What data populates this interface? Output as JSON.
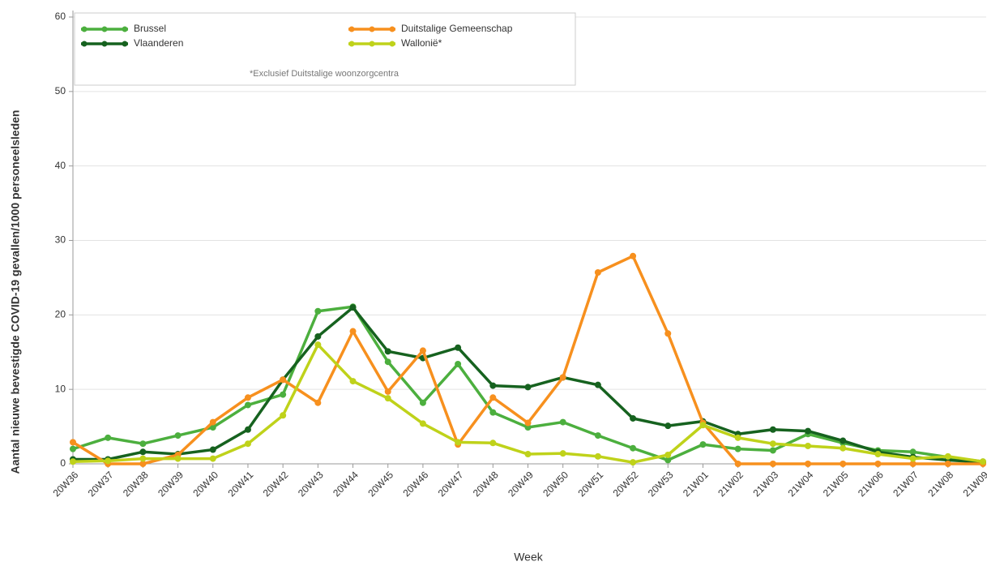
{
  "chart_data": {
    "type": "line",
    "x_label": "Week",
    "y_label": "Aantal nieuwe bevestigde COVID-19 gevallen/1000 personeelsleden",
    "annotation": "*Exclusief Duitstalige woonzorgcentra",
    "categories": [
      "20W36",
      "20W37",
      "20W38",
      "20W39",
      "20W40",
      "20W41",
      "20W42",
      "20W43",
      "20W44",
      "20W45",
      "20W46",
      "20W47",
      "20W48",
      "20W49",
      "20W50",
      "20W51",
      "20W52",
      "20W53",
      "21W01",
      "21W02",
      "21W03",
      "21W04",
      "21W05",
      "21W06",
      "21W07",
      "21W08",
      "21W09"
    ],
    "series": [
      {
        "name": "Brussel",
        "color": "#4caf3e",
        "values": [
          2.0,
          3.5,
          2.7,
          3.8,
          4.9,
          7.9,
          9.3,
          20.5,
          21.1,
          13.7,
          8.2,
          13.4,
          6.9,
          4.9,
          5.6,
          3.8,
          2.1,
          0.5,
          2.6,
          2.0,
          1.8,
          4.0,
          2.8,
          1.8,
          1.6,
          0.9,
          0.3
        ]
      },
      {
        "name": "Vlaanderen",
        "color": "#16621f",
        "values": [
          0.6,
          0.6,
          1.6,
          1.3,
          1.9,
          4.6,
          11.3,
          17.1,
          21.0,
          15.1,
          14.2,
          15.6,
          10.5,
          10.3,
          11.6,
          10.6,
          6.1,
          5.1,
          5.7,
          4.0,
          4.6,
          4.4,
          3.1,
          1.6,
          0.9,
          0.5,
          0.2
        ]
      },
      {
        "name": "Duitstalige Gemeenschap",
        "color": "#f7901e",
        "values": [
          2.9,
          0.0,
          0.0,
          1.2,
          5.6,
          8.9,
          11.3,
          8.2,
          17.8,
          9.7,
          15.2,
          2.6,
          8.9,
          5.5,
          11.6,
          25.7,
          27.9,
          17.5,
          5.5,
          0,
          0,
          0,
          0,
          0,
          0,
          0,
          0
        ]
      },
      {
        "name": "Wallonië*",
        "color": "#bfd21a",
        "values": [
          0.3,
          0.4,
          0.7,
          0.7,
          0.7,
          2.7,
          6.5,
          16.0,
          11.1,
          8.8,
          5.4,
          2.9,
          2.8,
          1.3,
          1.4,
          1.0,
          0.2,
          1.2,
          5.2,
          3.5,
          2.7,
          2.4,
          2.1,
          1.3,
          0.7,
          1.0,
          0.3
        ]
      }
    ],
    "ylim": [
      0,
      60
    ],
    "yticks": [
      0,
      10,
      20,
      30,
      40,
      50,
      60
    ],
    "grid": true
  }
}
